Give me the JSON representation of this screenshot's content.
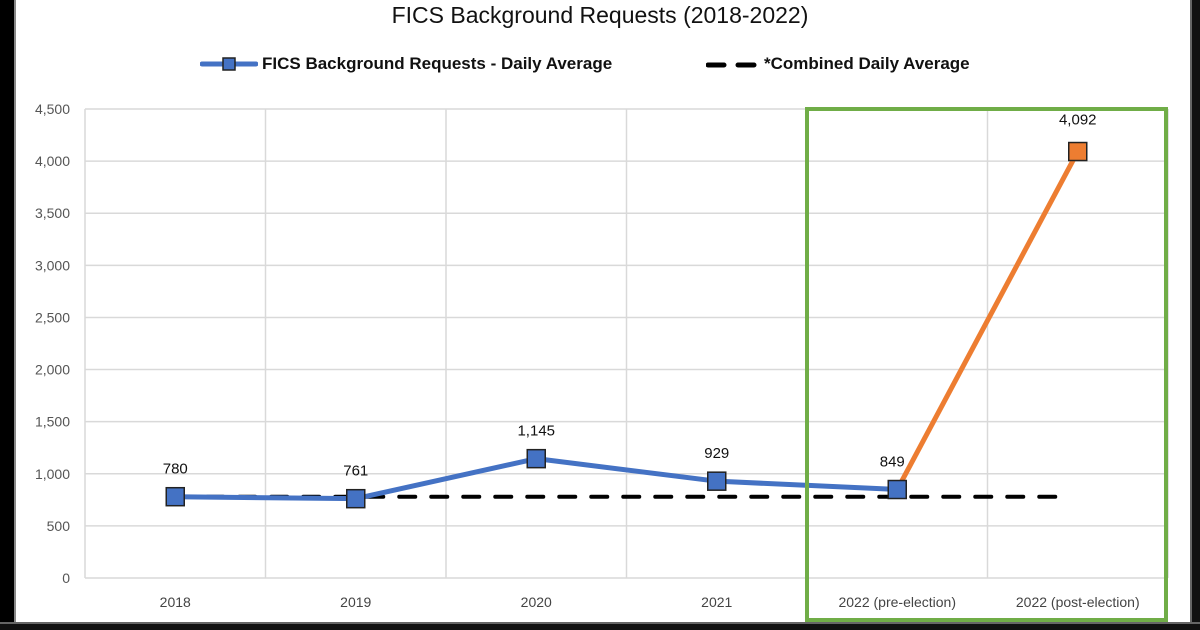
{
  "chart_data": {
    "type": "line",
    "title": "FICS Background Requests (2018-2022)",
    "xlabel": "",
    "ylabel": "",
    "ylim": [
      0,
      4500
    ],
    "yticks": [
      "0",
      "500",
      "1,000",
      "1,500",
      "2,000",
      "2,500",
      "3,000",
      "3,500",
      "4,000",
      "4,500"
    ],
    "grid": true,
    "legend_position": "top",
    "categories": [
      "2018",
      "2019",
      "2020",
      "2021",
      "2022 (pre-election)",
      "2022 (post-election)"
    ],
    "series": [
      {
        "name": "FICS Background Requests - Daily Average",
        "values": [
          780,
          761,
          1145,
          929,
          849,
          4092
        ],
        "data_labels": [
          "780",
          "761",
          "1,145",
          "929",
          "849",
          "4,092"
        ],
        "color": "#4472C4",
        "highlight_color": "#ED7D31",
        "highlight_segment": "2022 (pre-election) to 2022 (post-election)",
        "marker": "square"
      },
      {
        "name": "*Combined Daily Average",
        "values": [
          780,
          780,
          780,
          780,
          780,
          780
        ],
        "color": "#000000",
        "style": "dashed"
      }
    ],
    "annotations": [
      {
        "type": "box",
        "color": "#70AD47",
        "covers": [
          "2022 (pre-election)",
          "2022 (post-election)"
        ]
      }
    ]
  },
  "legend": {
    "series1_label": "FICS Background Requests - Daily Average",
    "series2_label": "*Combined Daily Average"
  }
}
